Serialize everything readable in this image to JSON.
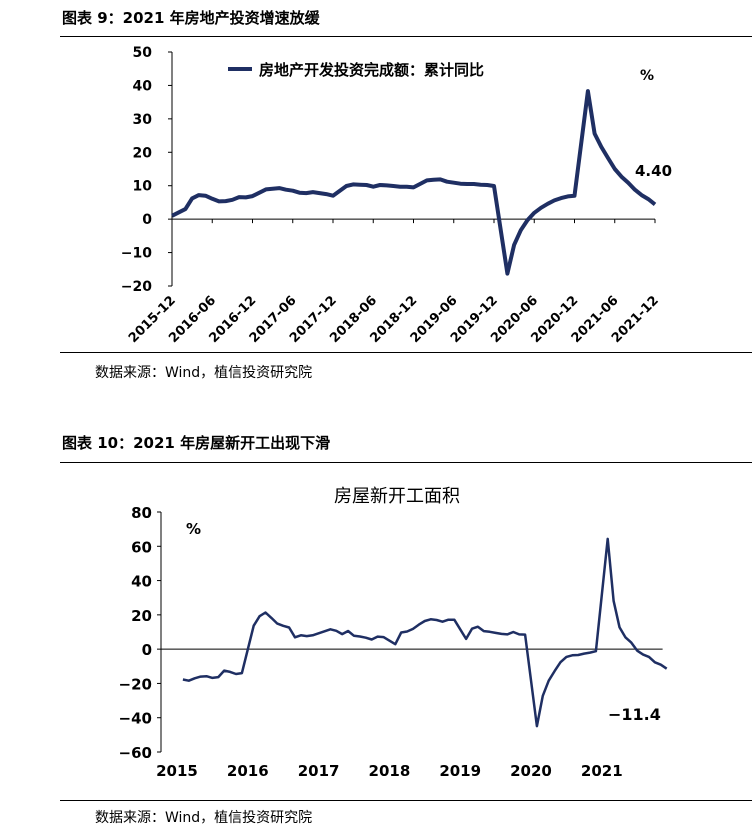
{
  "figure1": {
    "title": "图表 9：2021 年房地产投资增速放缓",
    "source": "数据来源：Wind，植信投资研究院"
  },
  "figure2": {
    "title": "图表 10：2021 年房屋新开工出现下滑",
    "source": "数据来源：Wind，植信投资研究院"
  },
  "chart_data": [
    {
      "type": "line",
      "title": "",
      "unit_label": "%",
      "ylim": [
        -20,
        50
      ],
      "yticks": [
        -20,
        -10,
        0,
        10,
        20,
        30,
        40,
        50
      ],
      "xticks": [
        "2015-12",
        "2016-06",
        "2016-12",
        "2017-06",
        "2017-12",
        "2018-06",
        "2018-12",
        "2019-06",
        "2019-12",
        "2020-06",
        "2020-12",
        "2021-06",
        "2021-12"
      ],
      "grid": false,
      "legend": "top-center",
      "color": "#1f2f63",
      "series": [
        {
          "name": "房地产开发投资完成额：累计同比",
          "x": [
            "2015-12",
            "2016-02",
            "2016-03",
            "2016-04",
            "2016-05",
            "2016-06",
            "2016-07",
            "2016-08",
            "2016-09",
            "2016-10",
            "2016-11",
            "2016-12",
            "2017-02",
            "2017-03",
            "2017-04",
            "2017-05",
            "2017-06",
            "2017-07",
            "2017-08",
            "2017-09",
            "2017-10",
            "2017-11",
            "2017-12",
            "2018-02",
            "2018-03",
            "2018-04",
            "2018-05",
            "2018-06",
            "2018-07",
            "2018-08",
            "2018-09",
            "2018-10",
            "2018-11",
            "2018-12",
            "2019-02",
            "2019-03",
            "2019-04",
            "2019-05",
            "2019-06",
            "2019-07",
            "2019-08",
            "2019-09",
            "2019-10",
            "2019-11",
            "2019-12",
            "2020-02",
            "2020-03",
            "2020-04",
            "2020-05",
            "2020-06",
            "2020-07",
            "2020-08",
            "2020-09",
            "2020-10",
            "2020-11",
            "2020-12",
            "2021-02",
            "2021-03",
            "2021-04",
            "2021-05",
            "2021-06",
            "2021-07",
            "2021-08",
            "2021-09",
            "2021-10",
            "2021-11",
            "2021-12"
          ],
          "values": [
            1.0,
            3.0,
            6.2,
            7.2,
            7.0,
            6.1,
            5.3,
            5.4,
            5.8,
            6.6,
            6.5,
            6.9,
            8.9,
            9.1,
            9.3,
            8.8,
            8.5,
            7.9,
            7.8,
            8.1,
            7.8,
            7.5,
            7.0,
            9.9,
            10.4,
            10.3,
            10.2,
            9.7,
            10.2,
            10.1,
            9.9,
            9.7,
            9.7,
            9.5,
            11.6,
            11.8,
            11.9,
            11.2,
            10.9,
            10.6,
            10.5,
            10.5,
            10.3,
            10.2,
            9.9,
            -16.3,
            -7.7,
            -3.3,
            -0.3,
            1.9,
            3.4,
            4.6,
            5.6,
            6.3,
            6.8,
            7.0,
            38.3,
            25.6,
            21.6,
            18.3,
            15.0,
            12.7,
            10.9,
            8.8,
            7.2,
            6.0,
            4.4
          ]
        }
      ],
      "annotations": [
        {
          "text": "4.40",
          "x": "2021-12",
          "y": 4.4
        }
      ]
    },
    {
      "type": "line",
      "title": "房屋新开工面积",
      "unit_label": "%",
      "ylim": [
        -60,
        80
      ],
      "yticks": [
        -60,
        -40,
        -20,
        0,
        20,
        40,
        60,
        80
      ],
      "xticks": [
        "2015",
        "2016",
        "2017",
        "2018",
        "2019",
        "2020",
        "2021"
      ],
      "grid": false,
      "color": "#1f2f63",
      "series": [
        {
          "x": [
            "2015-02",
            "2015-03",
            "2015-04",
            "2015-05",
            "2015-06",
            "2015-07",
            "2015-08",
            "2015-09",
            "2015-10",
            "2015-11",
            "2015-12",
            "2016-02",
            "2016-03",
            "2016-04",
            "2016-05",
            "2016-06",
            "2016-07",
            "2016-08",
            "2016-09",
            "2016-10",
            "2016-11",
            "2016-12",
            "2017-02",
            "2017-03",
            "2017-04",
            "2017-05",
            "2017-06",
            "2017-07",
            "2017-08",
            "2017-09",
            "2017-10",
            "2017-11",
            "2017-12",
            "2018-02",
            "2018-03",
            "2018-04",
            "2018-05",
            "2018-06",
            "2018-07",
            "2018-08",
            "2018-09",
            "2018-10",
            "2018-11",
            "2018-12",
            "2019-02",
            "2019-03",
            "2019-04",
            "2019-05",
            "2019-06",
            "2019-07",
            "2019-08",
            "2019-09",
            "2019-10",
            "2019-11",
            "2019-12",
            "2020-02",
            "2020-03",
            "2020-04",
            "2020-05",
            "2020-06",
            "2020-07",
            "2020-08",
            "2020-09",
            "2020-10",
            "2020-11",
            "2020-12",
            "2021-02",
            "2021-03",
            "2021-04",
            "2021-05",
            "2021-06",
            "2021-07",
            "2021-08",
            "2021-09",
            "2021-10",
            "2021-11",
            "2021-12"
          ],
          "values": [
            -17.7,
            -18.4,
            -17.0,
            -16.0,
            -15.8,
            -16.8,
            -16.3,
            -12.5,
            -13.3,
            -14.5,
            -14.0,
            13.7,
            19.2,
            21.4,
            18.2,
            14.9,
            13.6,
            12.6,
            6.9,
            8.1,
            7.6,
            8.1,
            10.4,
            11.6,
            10.7,
            8.8,
            10.6,
            7.8,
            7.4,
            6.7,
            5.6,
            7.3,
            7.0,
            2.9,
            9.7,
            10.3,
            11.8,
            14.3,
            16.4,
            17.4,
            17.0,
            16.0,
            17.2,
            17.2,
            6.0,
            11.9,
            13.1,
            10.5,
            10.1,
            9.5,
            8.9,
            8.6,
            10.0,
            8.6,
            8.5,
            -44.9,
            -27.2,
            -18.4,
            -12.8,
            -7.6,
            -4.5,
            -3.6,
            -3.4,
            -2.6,
            -2.0,
            -1.2,
            64.3,
            28.2,
            12.8,
            6.9,
            3.8,
            -0.9,
            -3.2,
            -4.5,
            -7.7,
            -9.1,
            -11.4
          ]
        }
      ],
      "annotations": [
        {
          "text": "−11.4",
          "x": "2021-12",
          "y": -11.4
        }
      ]
    }
  ]
}
